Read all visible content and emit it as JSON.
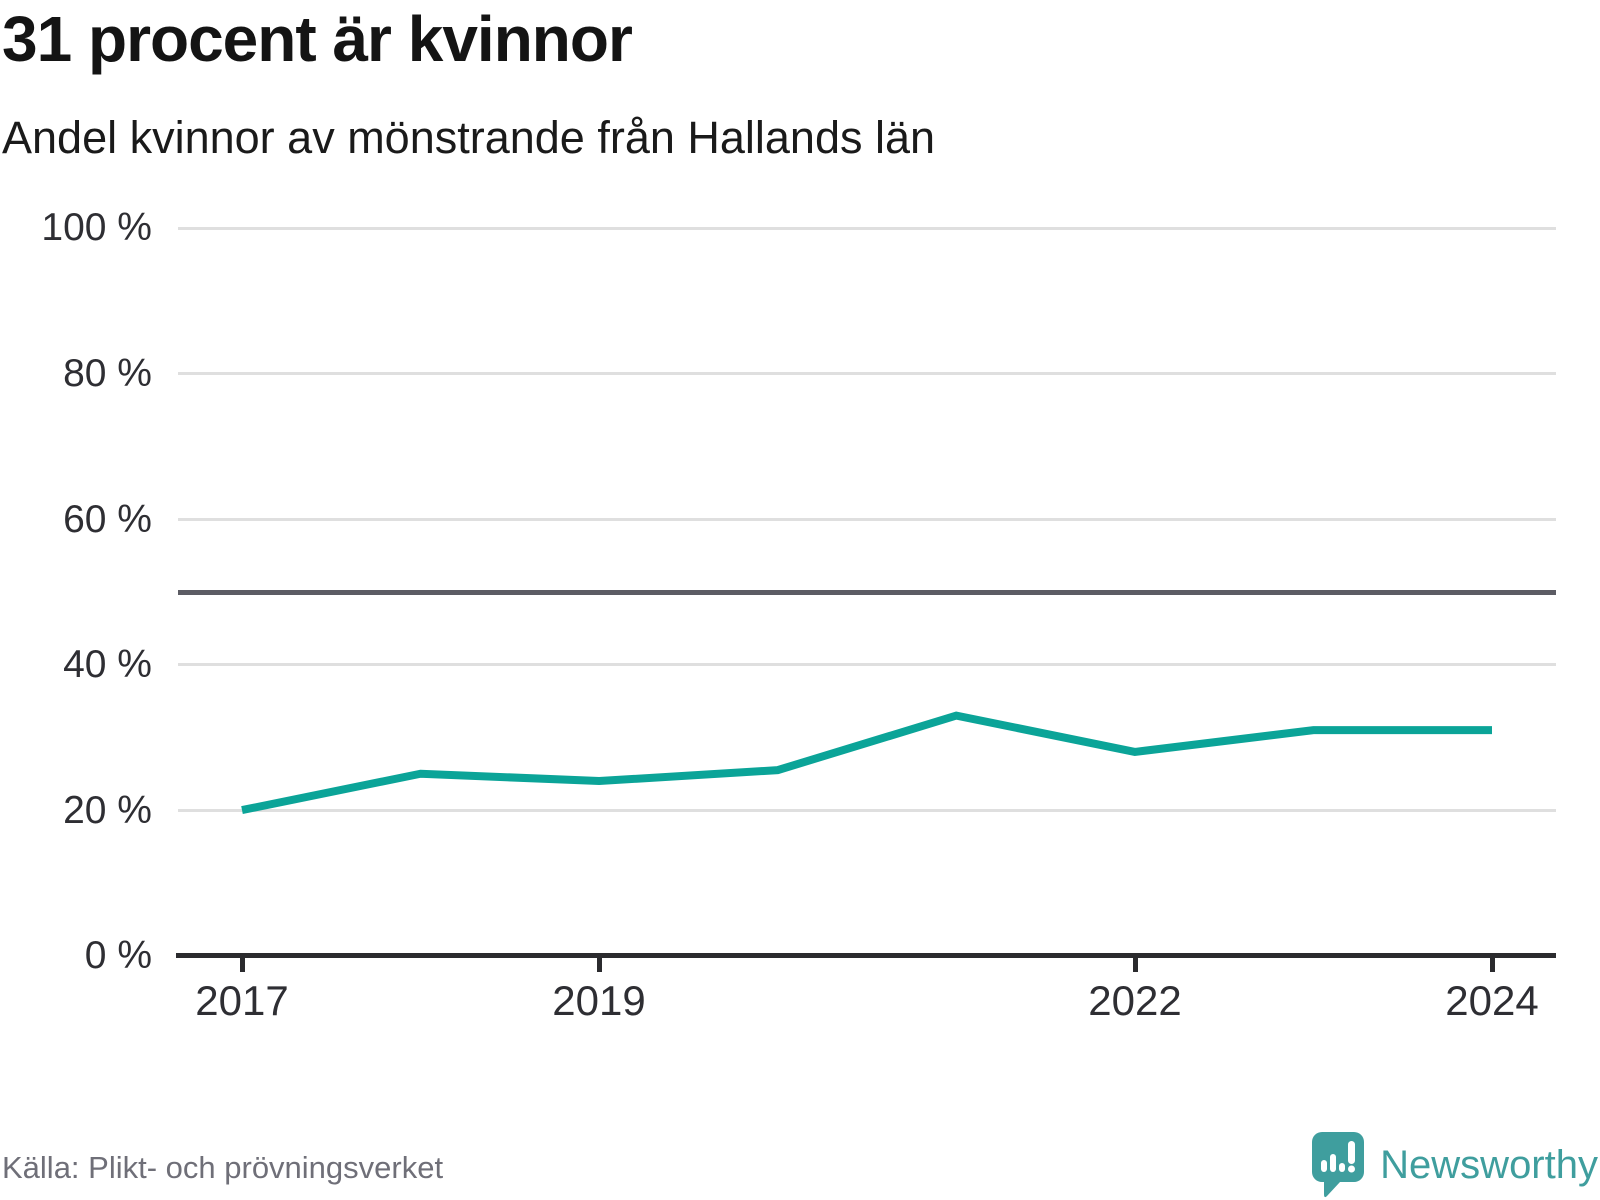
{
  "header": {
    "title": "31 procent är kvinnor",
    "subtitle": "Andel kvinnor av mönstrande från Hallands län"
  },
  "footer": {
    "source": "Källa: Plikt- och prövningsverket",
    "brand": "Newsworthy"
  },
  "colors": {
    "line": "#0ba498",
    "brand_teal": "#3f9e9e",
    "gridline": "#dfdfdf",
    "reference_line": "#5c5c64",
    "axis": "#2b2b2e"
  },
  "chart_data": {
    "type": "line",
    "title": "31 procent är kvinnor",
    "subtitle": "Andel kvinnor av mönstrande från Hallands län",
    "x": [
      2017,
      2018,
      2019,
      2020,
      2021,
      2022,
      2023,
      2024
    ],
    "series": [
      {
        "name": "Andel kvinnor av mönstrande",
        "values": [
          20,
          25,
          24,
          25.5,
          33,
          28,
          31,
          31
        ]
      }
    ],
    "unit": "%",
    "ylim": [
      0,
      100
    ],
    "y_ticks": [
      0,
      20,
      40,
      60,
      80,
      100
    ],
    "y_tick_labels": [
      "0 %",
      "20 %",
      "40 %",
      "60 %",
      "80 %",
      "100 %"
    ],
    "x_tick_years": [
      2017,
      2019,
      2022,
      2024
    ],
    "x_tick_labels": [
      "2017",
      "2019",
      "2022",
      "2024"
    ],
    "reference_line": 50,
    "grid": "horizontal",
    "legend": "none",
    "line_color": "#0ba498"
  }
}
